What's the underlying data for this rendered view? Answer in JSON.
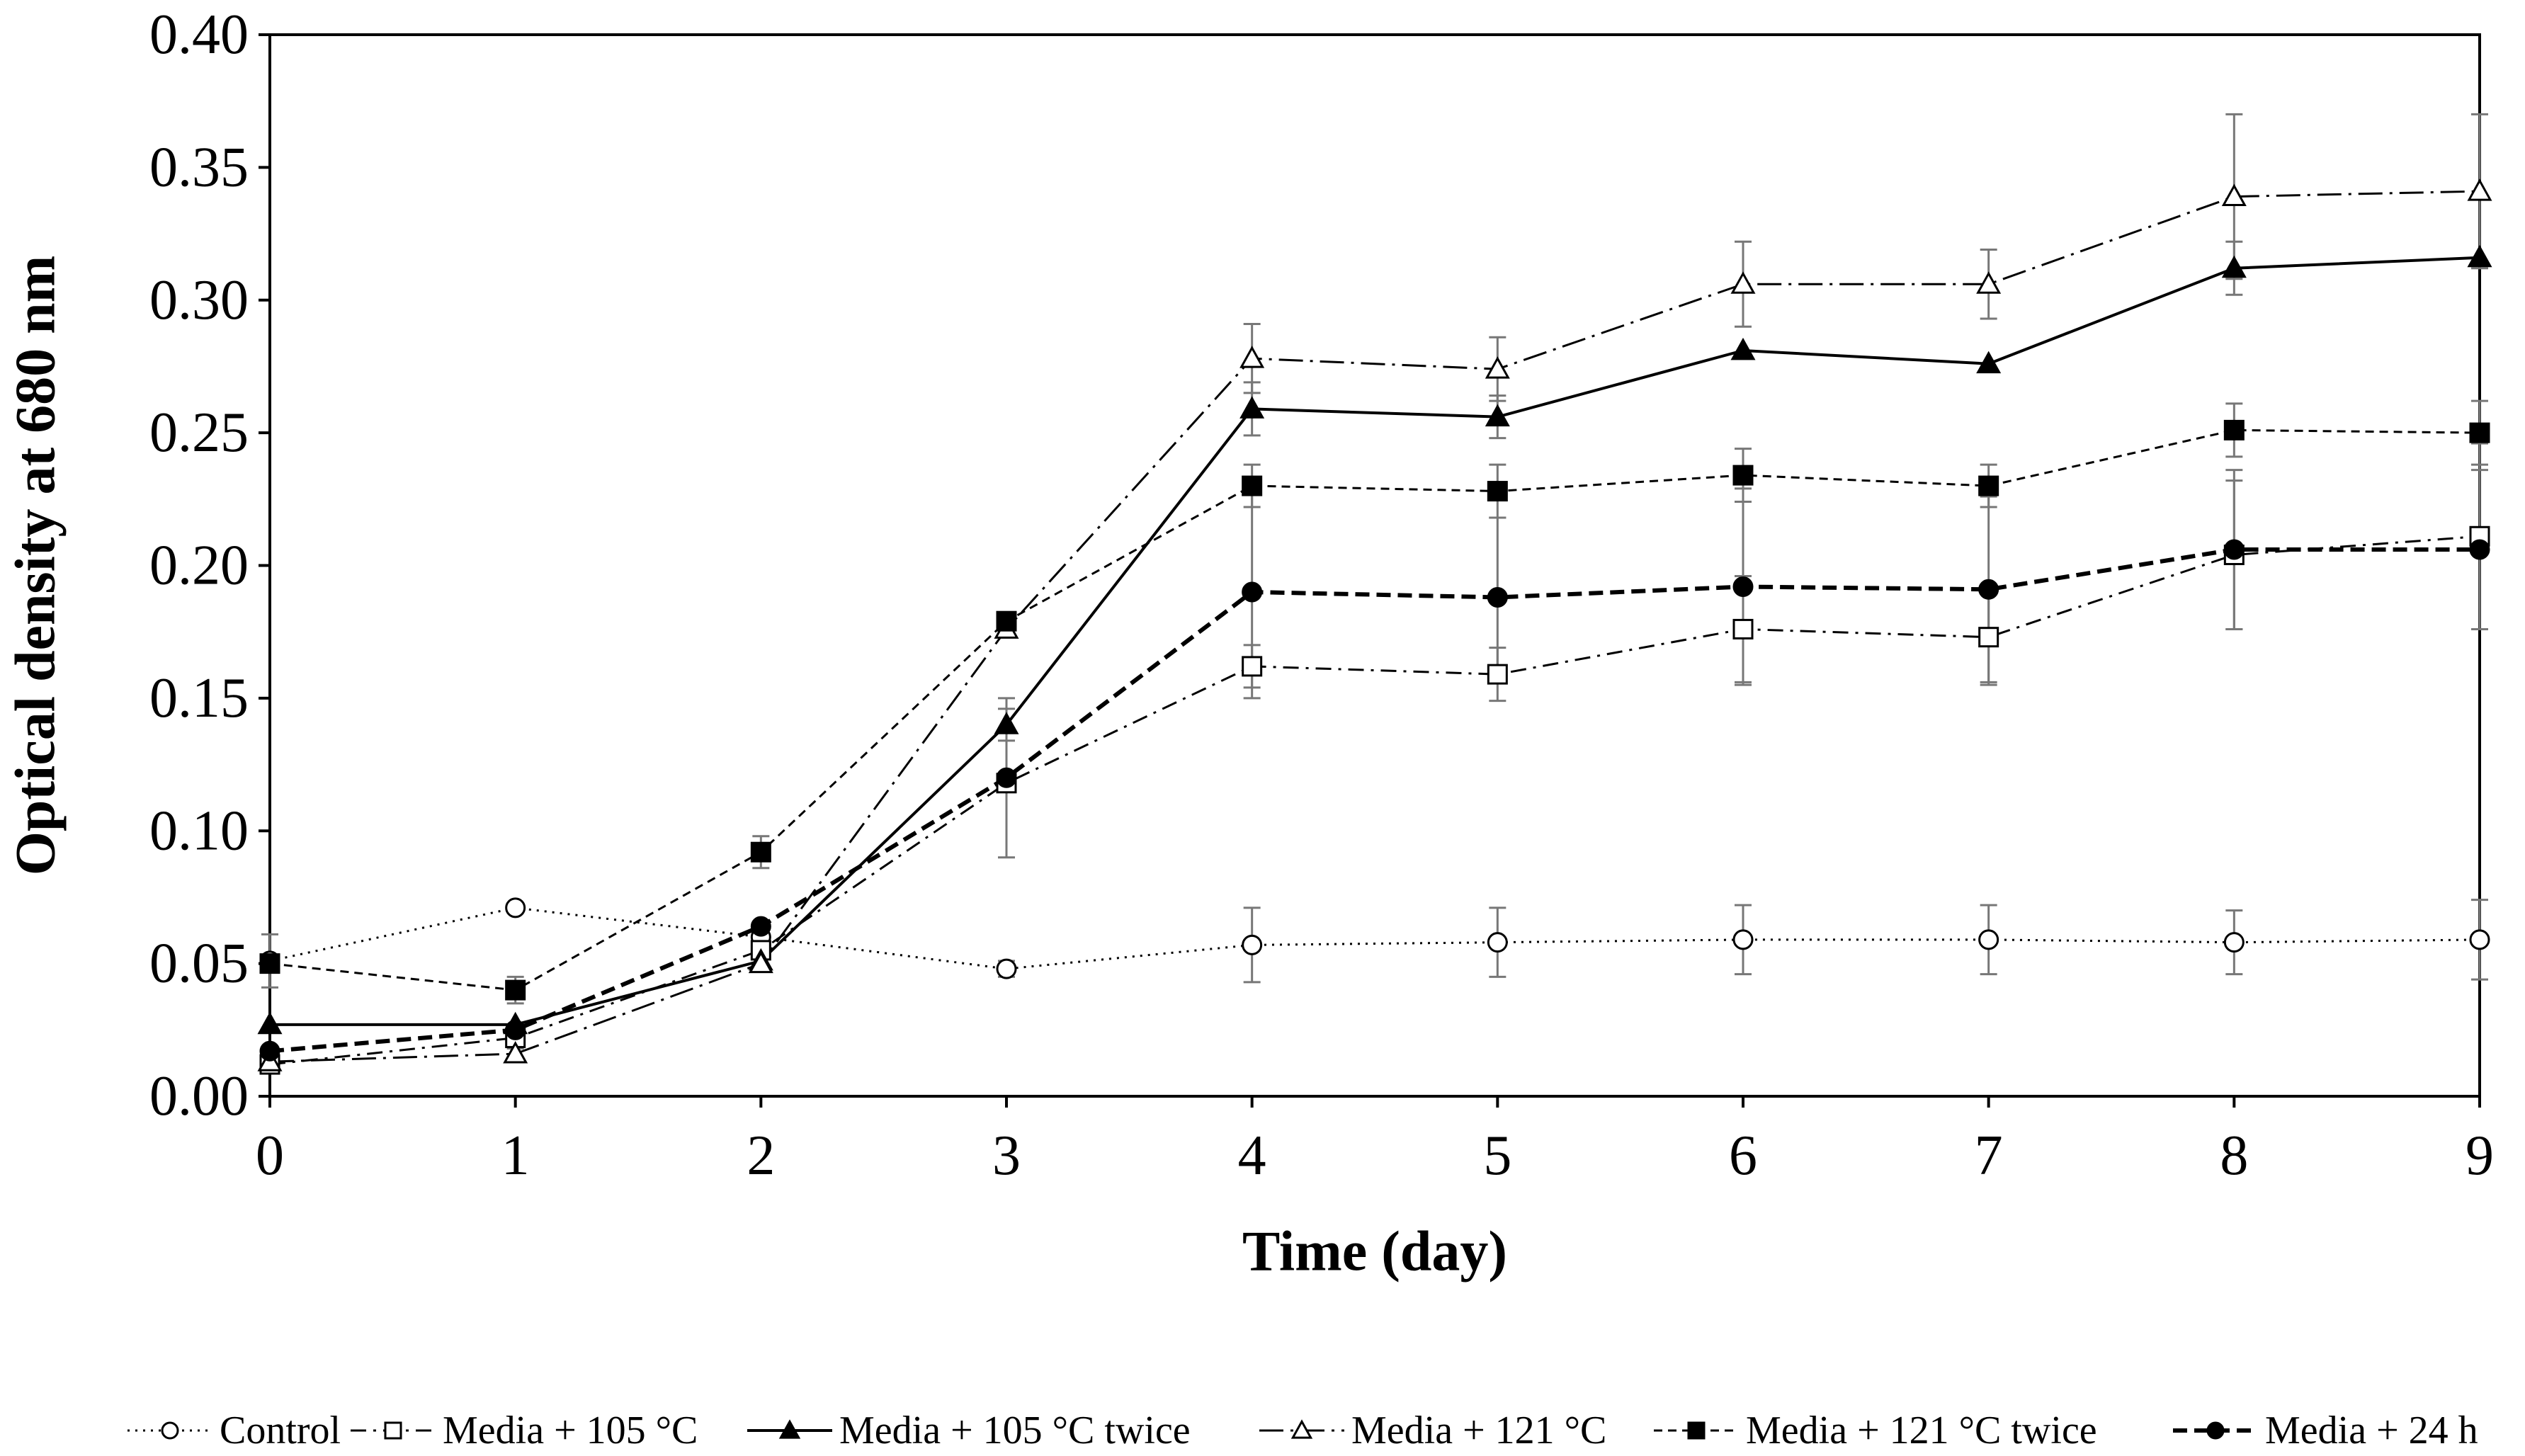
{
  "chart_data": {
    "type": "line",
    "title": "",
    "xlabel": "Time (day)",
    "ylabel": "Optical density at 680 nm",
    "xlim": [
      0,
      9
    ],
    "ylim": [
      0,
      0.4
    ],
    "grid": false,
    "legend_position": "bottom",
    "x": [
      0,
      1,
      2,
      3,
      4,
      5,
      6,
      7,
      8,
      9
    ],
    "x_ticks": [
      "0",
      "1",
      "2",
      "3",
      "4",
      "5",
      "6",
      "7",
      "8",
      "9"
    ],
    "y_ticks": [
      "0.00",
      "0.05",
      "0.10",
      "0.15",
      "0.20",
      "0.25",
      "0.30",
      "0.35",
      "0.40"
    ],
    "series": [
      {
        "name": "Control",
        "line_style": "dotted",
        "marker": "open-circle",
        "values": [
          0.051,
          0.071,
          0.06,
          0.048,
          0.057,
          0.058,
          0.059,
          0.059,
          0.058,
          0.059
        ],
        "errors": [
          0.01,
          0.0,
          0.0,
          0.003,
          0.014,
          0.013,
          0.013,
          0.013,
          0.012,
          0.015
        ]
      },
      {
        "name": "Media + 105 °C",
        "line_style": "dash-dot",
        "marker": "open-square",
        "values": [
          0.012,
          0.022,
          0.055,
          0.118,
          0.162,
          0.159,
          0.176,
          0.173,
          0.204,
          0.211
        ],
        "errors": [
          0.0,
          0.004,
          0.0,
          0.0,
          0.008,
          0.01,
          0.02,
          0.018,
          0.028,
          0.035
        ]
      },
      {
        "name": "Media + 105 °C twice",
        "line_style": "solid",
        "marker": "filled-triangle",
        "values": [
          0.027,
          0.027,
          0.051,
          0.14,
          0.259,
          0.256,
          0.281,
          0.276,
          0.312,
          0.316
        ],
        "errors": [
          0.0,
          0.0,
          0.0,
          0.006,
          0.01,
          0.008,
          0.0,
          0.0,
          0.01,
          0.0
        ]
      },
      {
        "name": "Media + 121 °C",
        "line_style": "long-dash-dot",
        "marker": "open-triangle",
        "values": [
          0.013,
          0.016,
          0.05,
          0.176,
          0.278,
          0.274,
          0.306,
          0.306,
          0.339,
          0.341
        ],
        "errors": [
          0.0,
          0.0,
          0.0,
          0.0,
          0.013,
          0.012,
          0.016,
          0.013,
          0.031,
          0.029
        ]
      },
      {
        "name": "Media + 121 °C twice",
        "line_style": "short-dash",
        "marker": "filled-square",
        "values": [
          0.05,
          0.04,
          0.092,
          0.179,
          0.23,
          0.228,
          0.234,
          0.23,
          0.251,
          0.25
        ],
        "errors": [
          0.0,
          0.005,
          0.006,
          0.0,
          0.008,
          0.01,
          0.01,
          0.008,
          0.01,
          0.012
        ]
      },
      {
        "name": "Media + 24 h",
        "line_style": "dashed-bold",
        "marker": "filled-circle",
        "values": [
          0.017,
          0.025,
          0.064,
          0.12,
          0.19,
          0.188,
          0.192,
          0.191,
          0.206,
          0.206
        ],
        "errors": [
          0.0,
          0.0,
          0.0,
          0.03,
          0.04,
          0.03,
          0.037,
          0.035,
          0.03,
          0.03
        ]
      }
    ]
  }
}
